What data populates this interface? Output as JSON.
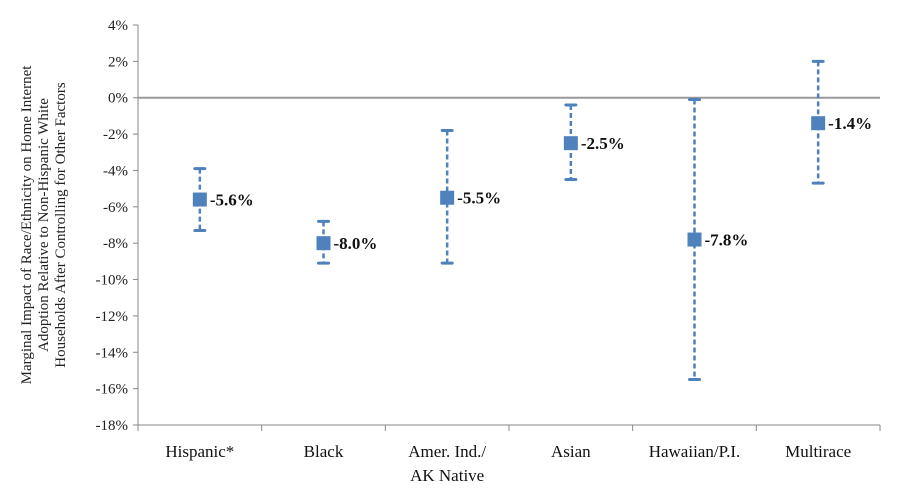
{
  "chart_data": {
    "type": "scatter",
    "categories": [
      [
        "Hispanic*"
      ],
      [
        "Black"
      ],
      [
        "Amer. Ind./",
        "AK Native"
      ],
      [
        "Asian"
      ],
      [
        "Hawaiian/P.I."
      ],
      [
        "Multirace"
      ]
    ],
    "values": [
      -5.6,
      -8.0,
      -5.5,
      -2.5,
      -7.8,
      -1.4
    ],
    "error_low": [
      -7.3,
      -9.1,
      -9.1,
      -4.5,
      -15.5,
      -4.7
    ],
    "error_high": [
      -3.9,
      -6.8,
      -1.8,
      -0.4,
      -0.1,
      2.0
    ],
    "data_labels": [
      "-5.6%",
      "-8.0%",
      "-5.5%",
      "-2.5%",
      "-7.8%",
      "-1.4%"
    ],
    "ylabel_lines": [
      "Marginal Impact of Race/Ethnicity on Home Internet",
      "Adoption Relative to Non-Hispanic White",
      "Households After Controlling for Other Factors"
    ],
    "ylim": [
      -18,
      4
    ],
    "y_ticks": [
      4,
      2,
      0,
      -2,
      -4,
      -6,
      -8,
      -10,
      -12,
      -14,
      -16,
      -18
    ],
    "y_tick_labels": [
      "4%",
      "2%",
      "0%",
      "-2%",
      "-4%",
      "-6%",
      "-8%",
      "-10%",
      "-12%",
      "-14%",
      "-16%",
      "-18%"
    ],
    "grid": false,
    "colors": {
      "marker": "#4f81bd",
      "errorbar": "#4f81bd",
      "axis": "#888888",
      "zero_line": "#999999"
    }
  }
}
